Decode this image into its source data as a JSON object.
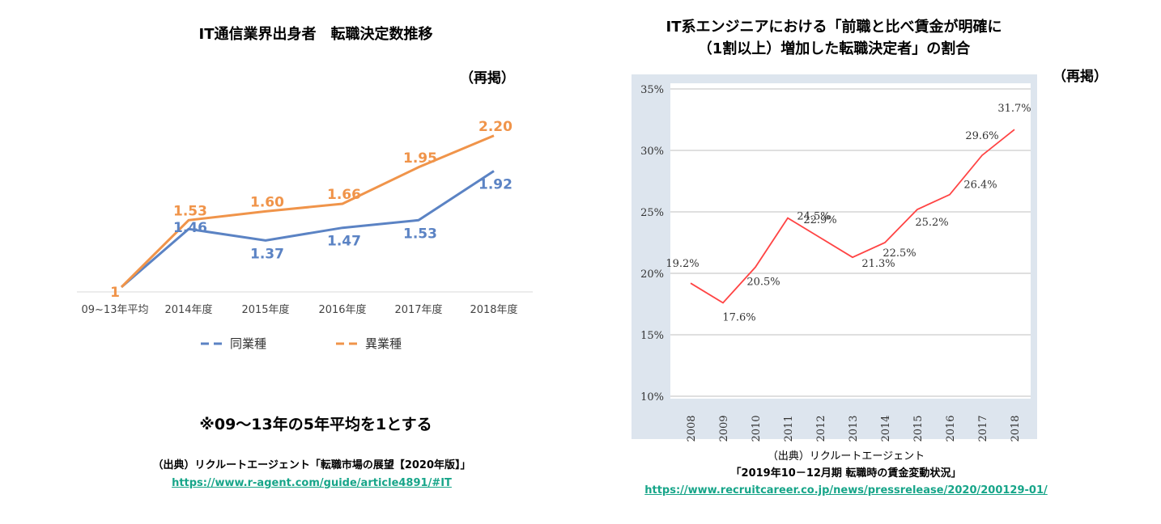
{
  "left": {
    "title": "IT通信業界出身者　転職決定数推移",
    "reprint": "（再掲）",
    "note": "※09～13年の5年平均を1とする",
    "source_line": "（出典）リクルートエージェント「転職市場の展望【2020年版】」",
    "source_url": "https://www.r-agent.com/guide/article4891/#IT"
  },
  "right": {
    "title_line1": "IT系エンジニアにおける「前職と比べ賃金が明確に",
    "title_line2": "（1割以上）増加した転職決定者」の割合",
    "reprint": "（再掲）",
    "source_line1": "（出典）リクルートエージェント",
    "source_line2": "「2019年10－12月期 転職時の賃金変動状況」",
    "source_url": "https://www.recruitcareer.co.jp/news/pressrelease/2020/200129-01/"
  },
  "colors": {
    "same_industry": "#5b83c4",
    "diff_industry": "#f0944a",
    "line_red": "#ff4444",
    "plot_frame": "#dde5ee",
    "link": "#17a589"
  },
  "chart_data": [
    {
      "type": "line",
      "categories": [
        "09~13年平均",
        "2014年度",
        "2015年度",
        "2016年度",
        "2017年度",
        "2018年度"
      ],
      "series": [
        {
          "name": "同業種",
          "values": [
            1,
            1.46,
            1.37,
            1.47,
            1.53,
            1.92
          ],
          "labels": [
            "",
            "1.46",
            "1.37",
            "1.47",
            "1.53",
            "1.92"
          ]
        },
        {
          "name": "異業種",
          "values": [
            1,
            1.53,
            1.6,
            1.66,
            1.95,
            2.2
          ],
          "labels": [
            "1",
            "1.53",
            "1.60",
            "1.66",
            "1.95",
            "2.20"
          ]
        }
      ],
      "ylim": [
        1,
        2.25
      ],
      "legend": "bottom"
    },
    {
      "type": "line",
      "x": [
        "2008",
        "2009",
        "2010",
        "2011",
        "2012",
        "2013",
        "2014",
        "2015",
        "2016",
        "2017",
        "2018"
      ],
      "series": [
        {
          "values": [
            19.2,
            17.6,
            20.5,
            24.5,
            22.9,
            21.3,
            22.5,
            25.2,
            26.4,
            29.6,
            31.7
          ],
          "labels": [
            "19.2%",
            "17.6%",
            "20.5%",
            "24.5%",
            "22.9%",
            "21.3%",
            "22.5%",
            "25.2%",
            "26.4%",
            "29.6%",
            "31.7%"
          ]
        }
      ],
      "yticks": [
        "10%",
        "15%",
        "20%",
        "25%",
        "30%",
        "35%"
      ],
      "ylim": [
        10,
        35
      ],
      "grid": true
    }
  ]
}
